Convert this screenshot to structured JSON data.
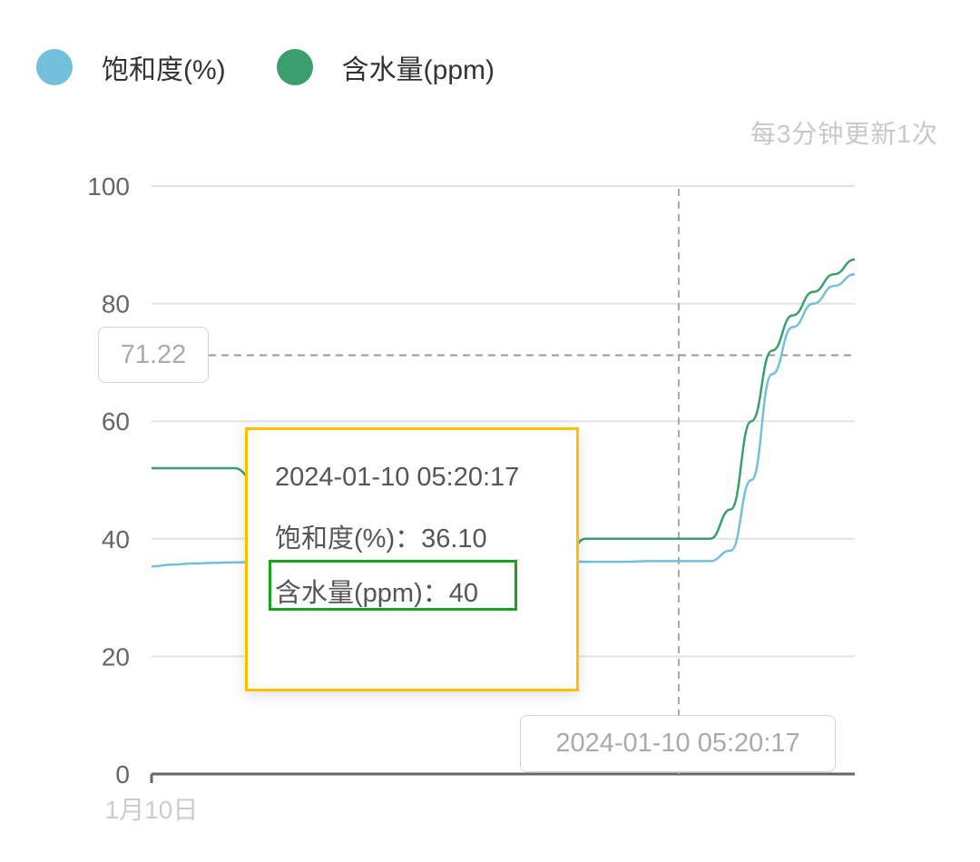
{
  "legend": [
    {
      "label": "饱和度(%)",
      "color": "#74C0DC"
    },
    {
      "label": "含水量(ppm)",
      "color": "#3A9E6F"
    }
  ],
  "update_note": "每3分钟更新1次",
  "tooltip": {
    "time": "2024-01-10 05:20:17",
    "saturation_label": "饱和度(%)：36.10",
    "water_label": "含水量(ppm)：40",
    "border_color": "#FFC000",
    "highlight_color": "#1AA31A"
  },
  "crosshair": {
    "y_value_label": "71.22",
    "x_value_label": "2024-01-10 05:20:17"
  },
  "chart_data": {
    "type": "line",
    "title": "",
    "xlabel": "",
    "ylabel": "",
    "x_tick_labels": [
      "1月10日"
    ],
    "y_ticks": [
      0,
      20,
      40,
      60,
      80,
      100
    ],
    "ylim": [
      0,
      100
    ],
    "grid": true,
    "legend_position": "top-left",
    "series": [
      {
        "name": "饱和度(%)",
        "color": "#74C0DC",
        "values": [
          35.3,
          35.6,
          35.8,
          35.9,
          36.0,
          36.0,
          36.0,
          36.0,
          36.0,
          36.0,
          36.0,
          36.0,
          36.0,
          36.0,
          36.1,
          36.1,
          36.1,
          36.1,
          36.1,
          36.1,
          36.1,
          36.1,
          36.1,
          36.1,
          36.2,
          36.2,
          36.2,
          36.2,
          38,
          50,
          68,
          76,
          80,
          83,
          85
        ]
      },
      {
        "name": "含水量(ppm)",
        "color": "#3A9E6F",
        "values": [
          52,
          52,
          52,
          52,
          52,
          50,
          46,
          42,
          38,
          36,
          36,
          36,
          36,
          36,
          36,
          36,
          36,
          36,
          36,
          36,
          37,
          40,
          40,
          40,
          40,
          40,
          40,
          40,
          45,
          60,
          72,
          78,
          82,
          85,
          87.5
        ]
      }
    ]
  }
}
